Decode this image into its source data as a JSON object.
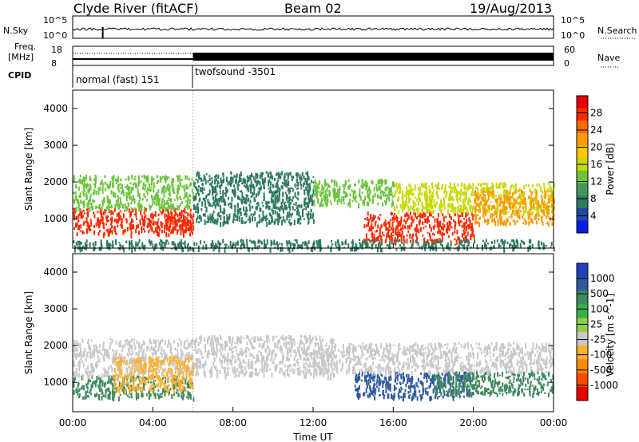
{
  "header": {
    "station": "Clyde River (fitACF)",
    "beam": "Beam 02",
    "date": "19/Aug/2013"
  },
  "status_panels": {
    "nsky_label": "N.Sky",
    "nsearch_label": "N.Search",
    "nsky_ticks": [
      "10^5",
      "10^0"
    ],
    "freq_label_line1": "Freq.",
    "freq_label_line2": "[MHz]",
    "freq_ticks": [
      "18",
      "8"
    ],
    "nave_label": "Nave",
    "nave_ticks": [
      "60",
      "0"
    ],
    "cpid_label": "CPID",
    "cpid_segments": [
      {
        "name": "normal (fast) 151",
        "start_hour": 0,
        "end_hour": 6
      },
      {
        "name": "twofsound -3501",
        "start_hour": 6,
        "end_hour": 24
      }
    ]
  },
  "chart_data": [
    {
      "type": "heatmap",
      "title": "Power",
      "ylabel": "Slant Range [km]",
      "xlabel": "Time UT",
      "xlim": [
        0,
        24
      ],
      "ylim": [
        200,
        4500
      ],
      "yticks": [
        1000,
        2000,
        3000,
        4000
      ],
      "xtick_labels": [
        "00:00",
        "04:00",
        "08:00",
        "12:00",
        "16:00",
        "20:00",
        "00:00"
      ],
      "colorbar_label": "Power [dB]",
      "colorbar_ticks": [
        "28",
        "24",
        "20",
        "16",
        "12",
        "8",
        "4"
      ],
      "colorbar_colors": [
        "#e60000",
        "#ff2a00",
        "#ff6a00",
        "#ff9a00",
        "#ffc800",
        "#c8d800",
        "#6cc43c",
        "#3f9a5a",
        "#2f7a5e",
        "#1f4aa8",
        "#0a1ee0"
      ],
      "scatter_bands": [
        {
          "hours": [
            0,
            6
          ],
          "range_km": [
            600,
            1300
          ],
          "level": 28
        },
        {
          "hours": [
            0,
            6
          ],
          "range_km": [
            1300,
            2200
          ],
          "level": 12
        },
        {
          "hours": [
            4.5,
            6
          ],
          "range_km": [
            700,
            1200
          ],
          "level": 28
        },
        {
          "hours": [
            6,
            12
          ],
          "range_km": [
            900,
            2300
          ],
          "level": 8
        },
        {
          "hours": [
            12,
            16
          ],
          "range_km": [
            1400,
            2100
          ],
          "level": 12
        },
        {
          "hours": [
            14.5,
            20
          ],
          "range_km": [
            400,
            1200
          ],
          "level": 28
        },
        {
          "hours": [
            16,
            24
          ],
          "range_km": [
            1200,
            2000
          ],
          "level": 16
        },
        {
          "hours": [
            20,
            24
          ],
          "range_km": [
            900,
            1800
          ],
          "level": 24
        },
        {
          "hours": [
            0,
            24
          ],
          "range_km": [
            200,
            450
          ],
          "level": 8
        }
      ]
    },
    {
      "type": "heatmap",
      "title": "Velocity",
      "ylabel": "Slant Range [km]",
      "xlabel": "Time UT",
      "xlim": [
        0,
        24
      ],
      "ylim": [
        200,
        4500
      ],
      "yticks": [
        1000,
        2000,
        3000,
        4000
      ],
      "xtick_labels": [
        "00:00",
        "04:00",
        "08:00",
        "12:00",
        "16:00",
        "20:00",
        "00:00"
      ],
      "colorbar_label": "Velocity [m s^-1]",
      "colorbar_ticks": [
        "1000",
        "500",
        "100",
        "25",
        "-25",
        "-100",
        "-500",
        "-1000"
      ],
      "colorbar_colors": [
        "#2040c0",
        "#2f5aa0",
        "#3f8a5e",
        "#3fae4a",
        "#8fd040",
        "#c8c8c8",
        "#ffb030",
        "#ff8a00",
        "#ff4a00",
        "#e60000"
      ],
      "scatter_bands": [
        {
          "hours": [
            0,
            6
          ],
          "range_km": [
            600,
            1200
          ],
          "level": 100
        },
        {
          "hours": [
            0,
            6
          ],
          "range_km": [
            1200,
            2200
          ],
          "level": -25
        },
        {
          "hours": [
            2,
            6
          ],
          "range_km": [
            800,
            1700
          ],
          "level": -100
        },
        {
          "hours": [
            6,
            13
          ],
          "range_km": [
            1200,
            2300
          ],
          "level": -25
        },
        {
          "hours": [
            14,
            20
          ],
          "range_km": [
            600,
            1300
          ],
          "level": 500
        },
        {
          "hours": [
            12,
            24
          ],
          "range_km": [
            1300,
            2100
          ],
          "level": -25
        },
        {
          "hours": [
            18,
            24
          ],
          "range_km": [
            700,
            1300
          ],
          "level": 100
        }
      ]
    }
  ]
}
